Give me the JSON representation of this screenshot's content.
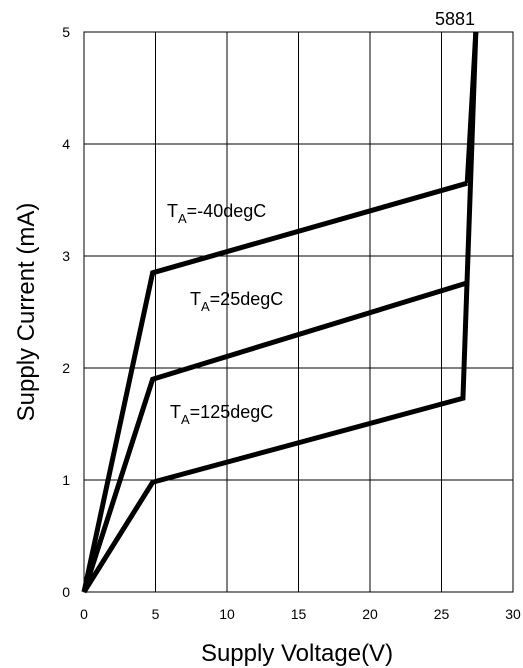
{
  "chart_data": {
    "type": "line",
    "title": "",
    "model_label": "5881",
    "xlabel": "Supply Voltage(V)",
    "ylabel": "Supply Current (mA)",
    "xlim": [
      0,
      30
    ],
    "ylim": [
      0,
      5
    ],
    "x_ticks": [
      "0",
      "5",
      "10",
      "15",
      "20",
      "25",
      "30"
    ],
    "y_ticks": [
      "0",
      "1",
      "2",
      "3",
      "4",
      "5"
    ],
    "grid": true,
    "legend": "none",
    "series": [
      {
        "label_main": "T",
        "label_sub": "A",
        "label_rest": "=-40degC",
        "points": [
          [
            0,
            0
          ],
          [
            4.8,
            2.85
          ],
          [
            26.8,
            3.65
          ]
        ]
      },
      {
        "label_main": "T",
        "label_sub": "A",
        "label_rest": "=25degC",
        "points": [
          [
            0,
            0
          ],
          [
            4.8,
            1.9
          ],
          [
            26.8,
            2.76
          ]
        ]
      },
      {
        "label_main": "T",
        "label_sub": "A",
        "label_rest": "=125degC",
        "points": [
          [
            0,
            0
          ],
          [
            4.8,
            0.98
          ],
          [
            26.5,
            1.73
          ],
          [
            27.4,
            5.0
          ]
        ]
      }
    ],
    "rise_line": [
      [
        26.8,
        3.65
      ],
      [
        27.4,
        5.0
      ]
    ],
    "line_color": "#000000"
  }
}
